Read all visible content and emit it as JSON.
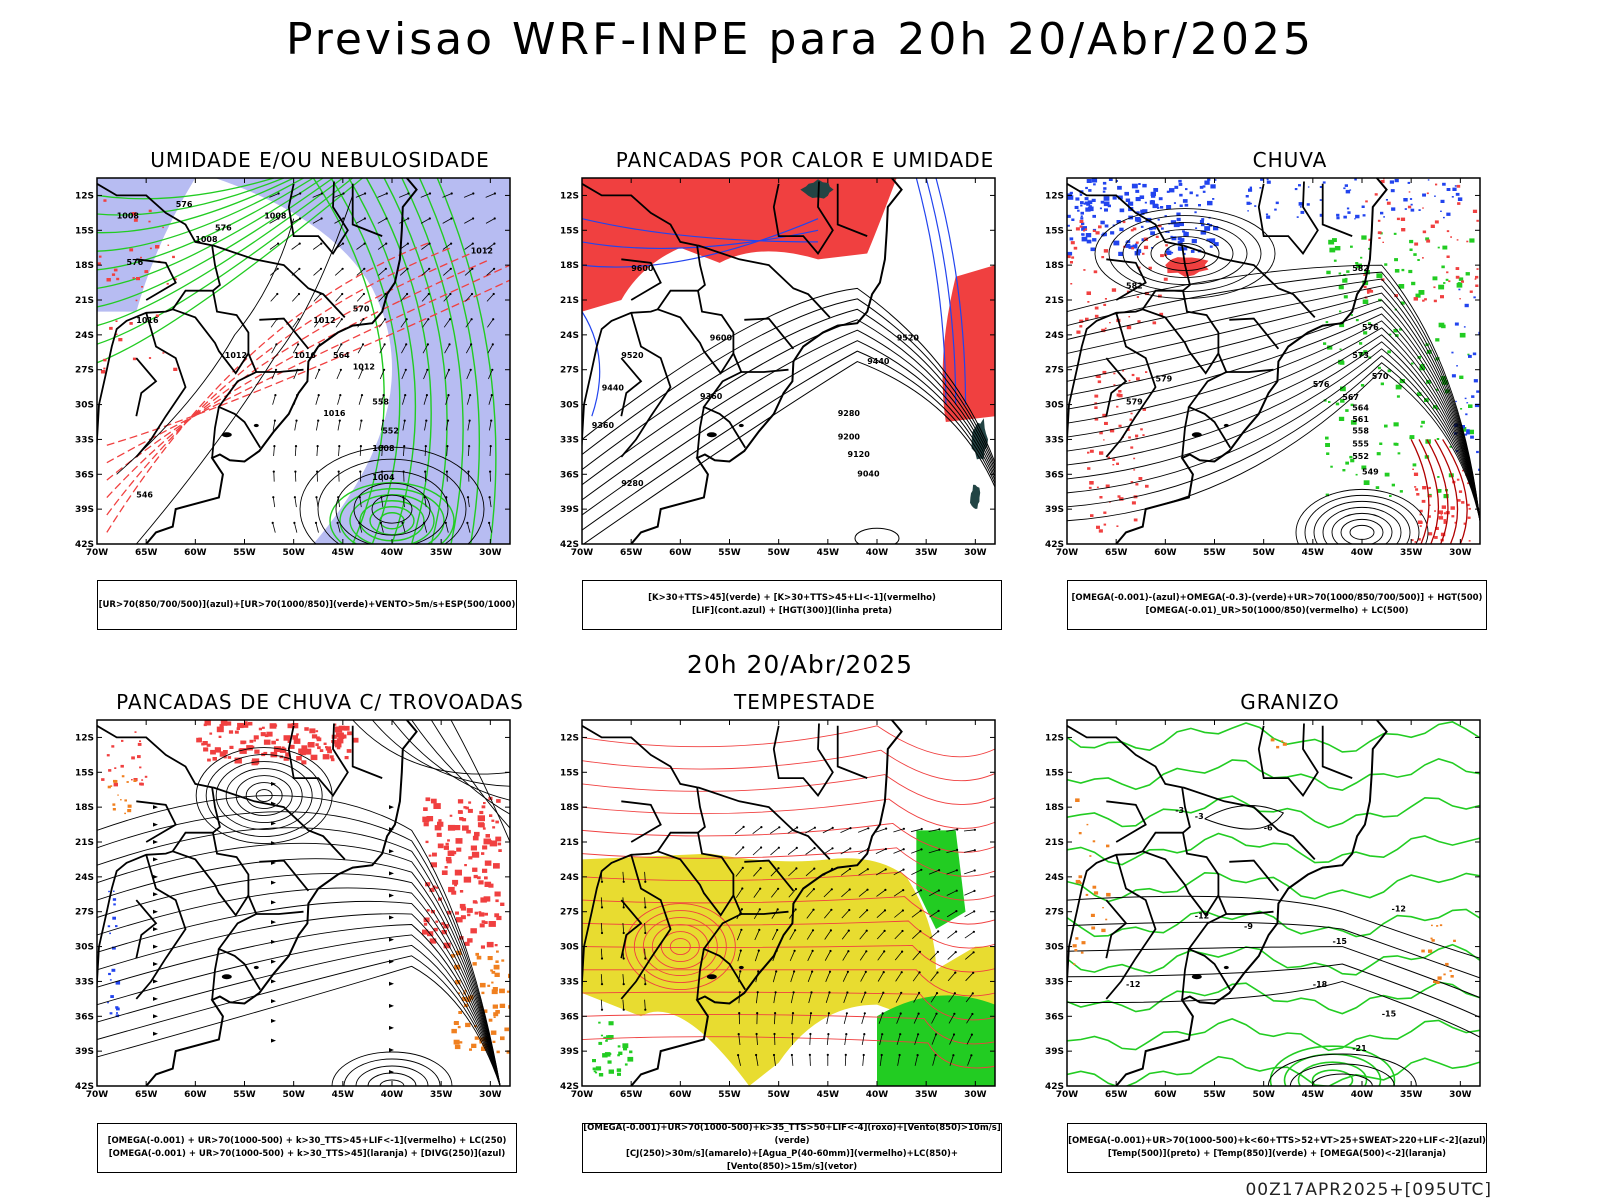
{
  "title": "Previsao WRF-INPE  para 20h 20/Abr/2025",
  "subtitle": "20h 20/Abr/2025",
  "footer": "00Z17APR2025+[095UTC]",
  "lat_labels": [
    "12S",
    "15S",
    "18S",
    "21S",
    "24S",
    "27S",
    "30S",
    "33S",
    "36S",
    "39S",
    "42S"
  ],
  "lon_labels": [
    "70W",
    "65W",
    "60W",
    "55W",
    "50W",
    "45W",
    "40W",
    "35W",
    "30W"
  ],
  "colors": {
    "red": "#f04040",
    "green": "#22cc22",
    "blue": "#2244ee",
    "lavender": "#aab0f0",
    "yellow": "#e8dc30",
    "orange": "#f08020",
    "dark_teal": "#224444",
    "black": "#000000"
  },
  "panels": [
    {
      "title": "UMIDADE E/OU NEBULOSIDADE",
      "legend": [
        "[UR>70(850/700/500)](azul)+[UR>70(1000/850)](verde)+VENTO>5m/s+ESP(500/1000)"
      ],
      "contour_labels": [
        "1008",
        "1008",
        "1008",
        "1012",
        "1012",
        "1012",
        "1012",
        "1016",
        "1016",
        "1016",
        "1008",
        "1004",
        "576",
        "576",
        "576",
        "570",
        "564",
        "558",
        "552",
        "546"
      ]
    },
    {
      "title": "PANCADAS POR CALOR E UMIDADE",
      "legend": [
        "[K>30+TTS>45](verde) + [K>30+TTS>45+LI<-1](vermelho)",
        "[LIF](cont.azul) + [HGT(300)](linha preta)"
      ],
      "contour_labels": [
        "9600",
        "9600",
        "9520",
        "9520",
        "9440",
        "9440",
        "9360",
        "9360",
        "9280",
        "9280",
        "9200",
        "9120",
        "9040"
      ]
    },
    {
      "title": "CHUVA",
      "legend": [
        "[OMEGA(-0.001)-(azul)+OMEGA(-0.3)-(verde)+UR>70(1000/850/700/500)] + HGT(500)",
        "[OMEGA(-0.01)_UR>50(1000/850)(vermelho) + LC(500)"
      ],
      "contour_labels": [
        "582",
        "579",
        "576",
        "576",
        "573",
        "570",
        "567",
        "564",
        "561",
        "558",
        "555",
        "552",
        "549",
        "582",
        "579"
      ]
    },
    {
      "title": "PANCADAS DE CHUVA C/ TROVOADAS",
      "legend": [
        "[OMEGA(-0.001) + UR>70(1000-500) + k>30_TTS>45+LIF<-1](vermelho) + LC(250)",
        "[OMEGA(-0.001) + UR>70(1000-500) + k>30_TTS>45](laranja) + [DIVG(250)](azul)"
      ],
      "contour_labels": []
    },
    {
      "title": "TEMPESTADE",
      "legend": [
        "[OMEGA(-0.001)+UR>70(1000-500)+k>35_TTS>50+LIF<-4](roxo)+[Vento(850)>10m/s](verde)",
        "[CJ(250)>30m/s](amarelo)+[Agua_P(40-60mm)](vermelho)+LC(850)+[Vento(850)>15m/s](vetor)"
      ],
      "contour_labels": []
    },
    {
      "title": "GRANIZO",
      "legend": [
        "[OMEGA(-0.001)+UR>70(1000-500)+k<60+TTS>52+VT>25+SWEAT>220+LIF<-2](azul)",
        "[Temp(500)](preto) + [Temp(850)](verde) + [OMEGA(500)<-2](laranja)"
      ],
      "contour_labels": [
        "-3",
        "-6",
        "-12",
        "-12",
        "-15",
        "-18",
        "-9",
        "-3",
        "-12",
        "-21",
        "-15"
      ]
    }
  ]
}
